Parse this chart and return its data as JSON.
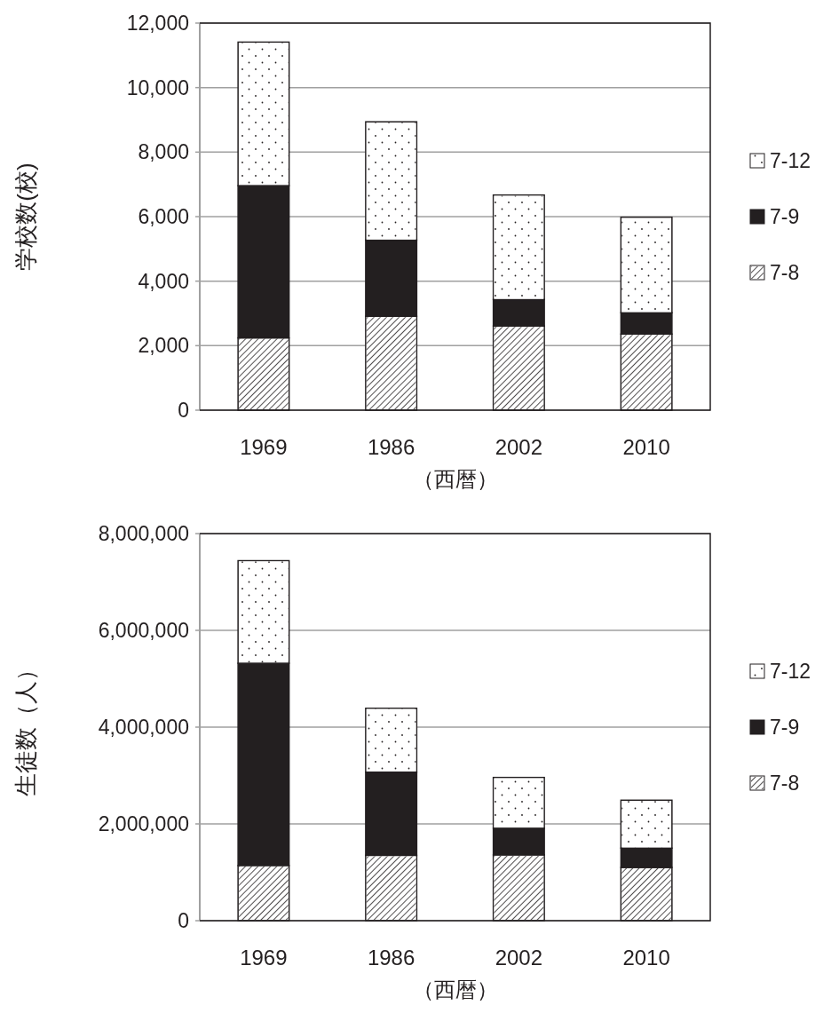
{
  "chart_data": [
    {
      "type": "bar",
      "stacked": true,
      "ylabel": "学校数(校)",
      "xlabel": "（西暦）",
      "categories": [
        "1969",
        "1986",
        "2002",
        "2010"
      ],
      "series": [
        {
          "name": "7-8",
          "color": "#ffffff",
          "values": [
            2240,
            2910,
            2610,
            2360
          ]
        },
        {
          "name": "7-9",
          "color": "#231f20",
          "values": [
            4720,
            2360,
            820,
            660
          ]
        },
        {
          "name": "7-12",
          "color": "#ffffff",
          "values": [
            4450,
            3670,
            3240,
            2960
          ]
        }
      ],
      "ylim": [
        0,
        12000
      ],
      "yticks": [
        0,
        {
          "value": 2000,
          "label": "2,000"
        },
        {
          "value": 4000,
          "label": "4,000"
        },
        {
          "value": 6000,
          "label": "6,000"
        },
        {
          "value": 8000,
          "label": "8,000"
        },
        {
          "value": 10000,
          "label": "10,000"
        },
        {
          "value": 12000,
          "label": "12,000"
        }
      ],
      "grid": "y",
      "legend": "right"
    },
    {
      "type": "bar",
      "stacked": true,
      "ylabel": "生徒数（人）",
      "xlabel": "（西暦）",
      "categories": [
        "1969",
        "1986",
        "2002",
        "2010"
      ],
      "series": [
        {
          "name": "7-8",
          "color": "#ffffff",
          "values": [
            1140000,
            1350000,
            1360000,
            1100000
          ]
        },
        {
          "name": "7-9",
          "color": "#231f20",
          "values": [
            4180000,
            1720000,
            550000,
            400000
          ]
        },
        {
          "name": "7-12",
          "color": "#ffffff",
          "values": [
            2120000,
            1320000,
            1050000,
            990000
          ]
        }
      ],
      "ylim": [
        0,
        8000000
      ],
      "yticks": [
        0,
        {
          "value": 2000000,
          "label": "2,000,000"
        },
        {
          "value": 4000000,
          "label": "4,000,000"
        },
        {
          "value": 6000000,
          "label": "6,000,000"
        },
        {
          "value": 8000000,
          "label": "8,000,000"
        }
      ],
      "grid": "y",
      "legend": "right"
    }
  ]
}
